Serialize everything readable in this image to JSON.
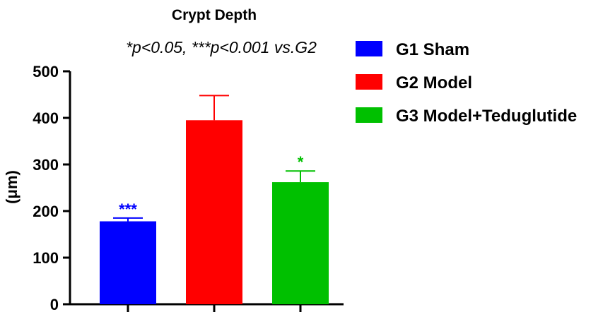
{
  "chart_data": {
    "type": "bar",
    "title": "Crypt Depth",
    "subtitle": "*p<0.05, ***p<0.001 vs.G2",
    "ylabel": "(μm)",
    "xlabel": "",
    "ylim": [
      0,
      500
    ],
    "yticks": [
      "0",
      "100",
      "200",
      "300",
      "400",
      "500"
    ],
    "categories": [
      "G1 Sham",
      "G2 Model",
      "G3 Model+Teduglutide"
    ],
    "values": [
      178,
      395,
      262
    ],
    "errors": [
      7,
      53,
      24
    ],
    "significance": [
      "***",
      "",
      "*"
    ],
    "colors": [
      "#0000ff",
      "#ff0000",
      "#00c000"
    ],
    "legend": [
      {
        "label": "G1 Sham",
        "color": "#0000ff"
      },
      {
        "label": "G2 Model",
        "color": "#ff0000"
      },
      {
        "label": "G3 Model+Teduglutide",
        "color": "#00c000"
      }
    ]
  }
}
